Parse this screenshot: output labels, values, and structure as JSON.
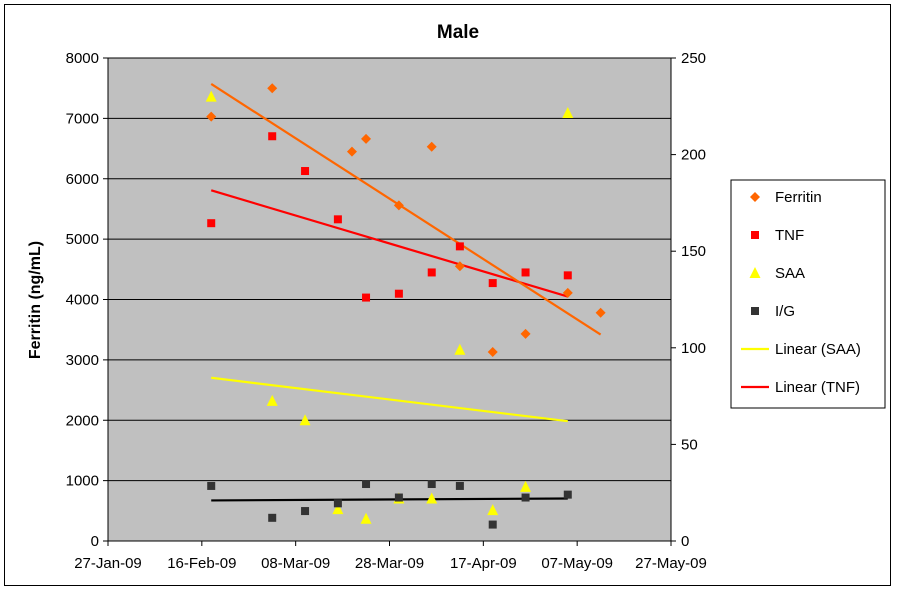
{
  "chart_data": {
    "type": "scatter",
    "title": "Male",
    "ylabel": "Ferritin (ng/mL)",
    "ylabel_right": "",
    "xlabel": "",
    "x_ticks": [
      "27-Jan-09",
      "16-Feb-09",
      "08-Mar-09",
      "28-Mar-09",
      "17-Apr-09",
      "07-May-09",
      "27-May-09"
    ],
    "xlim": [
      "2009-01-27",
      "2009-05-27"
    ],
    "ylim_left": [
      0,
      8000
    ],
    "ylim_right": [
      0,
      250
    ],
    "y_ticks_left": [
      0,
      1000,
      2000,
      3000,
      4000,
      5000,
      6000,
      7000,
      8000
    ],
    "y_ticks_right": [
      0,
      50,
      100,
      150,
      200,
      250
    ],
    "grid": "horizontal",
    "plot_background": "#c0c0c0",
    "legend_position": "right",
    "series": [
      {
        "name": "Ferritin",
        "axis": "left",
        "marker": "diamond",
        "color": "#ff6600",
        "points": [
          [
            "2009-02-18",
            7030
          ],
          [
            "2009-03-03",
            7500
          ],
          [
            "2009-03-20",
            6450
          ],
          [
            "2009-03-23",
            6660
          ],
          [
            "2009-03-30",
            5560
          ],
          [
            "2009-04-06",
            6530
          ],
          [
            "2009-04-12",
            4550
          ],
          [
            "2009-04-19",
            3130
          ],
          [
            "2009-04-26",
            3430
          ],
          [
            "2009-05-05",
            4110
          ],
          [
            "2009-05-12",
            3780
          ]
        ]
      },
      {
        "name": "TNF",
        "axis": "right",
        "marker": "square",
        "color": "#ff0000",
        "points": [
          [
            "2009-02-18",
            164.5
          ],
          [
            "2009-03-03",
            209.5
          ],
          [
            "2009-03-10",
            191.5
          ],
          [
            "2009-03-17",
            166.5
          ],
          [
            "2009-03-23",
            126
          ],
          [
            "2009-03-30",
            128
          ],
          [
            "2009-04-06",
            139
          ],
          [
            "2009-04-12",
            152.5
          ],
          [
            "2009-04-19",
            133.5
          ],
          [
            "2009-04-26",
            139
          ],
          [
            "2009-05-05",
            137.5
          ]
        ]
      },
      {
        "name": "SAA",
        "axis": "right",
        "marker": "triangle",
        "color": "#ffff00",
        "points": [
          [
            "2009-02-18",
            230
          ],
          [
            "2009-03-03",
            72.5
          ],
          [
            "2009-03-10",
            62.5
          ],
          [
            "2009-03-17",
            16.5
          ],
          [
            "2009-03-23",
            11.5
          ],
          [
            "2009-03-30",
            22
          ],
          [
            "2009-04-06",
            22
          ],
          [
            "2009-04-12",
            99
          ],
          [
            "2009-04-19",
            16
          ],
          [
            "2009-04-26",
            28
          ],
          [
            "2009-05-05",
            221.5
          ]
        ]
      },
      {
        "name": "I/G",
        "axis": "right",
        "marker": "square",
        "color": "#333333",
        "points": [
          [
            "2009-02-18",
            28.5
          ],
          [
            "2009-03-03",
            12
          ],
          [
            "2009-03-10",
            15.5
          ],
          [
            "2009-03-17",
            19.5
          ],
          [
            "2009-03-23",
            29.5
          ],
          [
            "2009-03-30",
            22.5
          ],
          [
            "2009-04-06",
            29.5
          ],
          [
            "2009-04-12",
            28.5
          ],
          [
            "2009-04-19",
            8.5
          ],
          [
            "2009-04-26",
            22.5
          ],
          [
            "2009-05-05",
            24
          ]
        ]
      },
      {
        "name": "Linear (SAA)",
        "axis": "right",
        "type": "trendline",
        "color": "#ffff00",
        "points": [
          [
            "2009-02-18",
            84.5
          ],
          [
            "2009-05-05",
            62
          ]
        ]
      },
      {
        "name": "Linear (TNF)",
        "axis": "right",
        "type": "trendline",
        "color": "#ff0000",
        "points": [
          [
            "2009-02-18",
            181.5
          ],
          [
            "2009-05-05",
            126.5
          ]
        ]
      },
      {
        "type": "trendline",
        "axis": "left",
        "color": "#ff6600",
        "points": [
          [
            "2009-02-18",
            7570
          ],
          [
            "2009-05-12",
            3420
          ]
        ]
      },
      {
        "type": "trendline",
        "axis": "right",
        "color": "#000000",
        "points": [
          [
            "2009-02-18",
            21
          ],
          [
            "2009-05-05",
            22
          ]
        ]
      }
    ],
    "legend": [
      {
        "label": "Ferritin",
        "symbol": "diamond",
        "color": "#ff6600"
      },
      {
        "label": "TNF",
        "symbol": "square",
        "color": "#ff0000"
      },
      {
        "label": "SAA",
        "symbol": "triangle",
        "color": "#ffff00"
      },
      {
        "label": "I/G",
        "symbol": "square",
        "color": "#333333"
      },
      {
        "label": "Linear (SAA)",
        "symbol": "line",
        "color": "#ffff00"
      },
      {
        "label": "Linear (TNF)",
        "symbol": "line",
        "color": "#ff0000"
      }
    ]
  }
}
